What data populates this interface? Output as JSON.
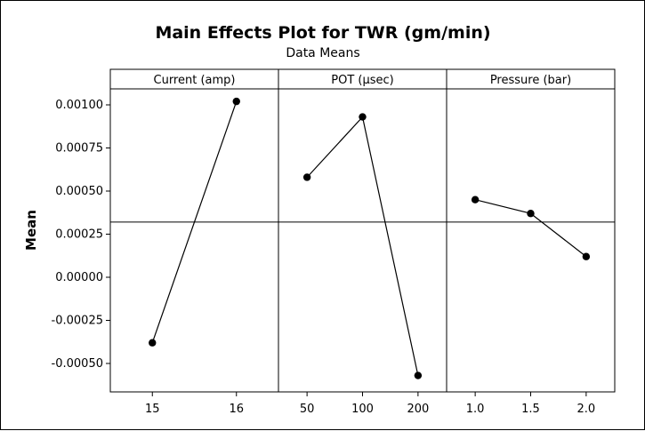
{
  "chart_data": {
    "type": "line",
    "title": "Main Effects Plot for TWR (gm/min)",
    "subtitle": "Data Means",
    "ylabel": "Mean",
    "ylim": [
      -0.0007,
      0.0012
    ],
    "yticks": [
      "0.00100",
      "0.00075",
      "0.00050",
      "0.00025",
      "0.00000",
      "-0.00025",
      "-0.00050"
    ],
    "ytick_values": [
      0.001,
      0.00075,
      0.0005,
      0.00025,
      0.0,
      -0.00025,
      -0.0005
    ],
    "grand_mean": 0.00032,
    "panels": [
      {
        "factor": "Current (amp)",
        "levels": [
          "15",
          "16"
        ],
        "values": [
          -0.00038,
          0.00102
        ]
      },
      {
        "factor": "POT (µsec)",
        "levels": [
          "50",
          "100",
          "200"
        ],
        "values": [
          0.00058,
          0.00093,
          -0.00057
        ]
      },
      {
        "factor": "Pressure (bar)",
        "levels": [
          "1.0",
          "1.5",
          "2.0"
        ],
        "values": [
          0.00045,
          0.00037,
          0.00012
        ]
      }
    ]
  }
}
